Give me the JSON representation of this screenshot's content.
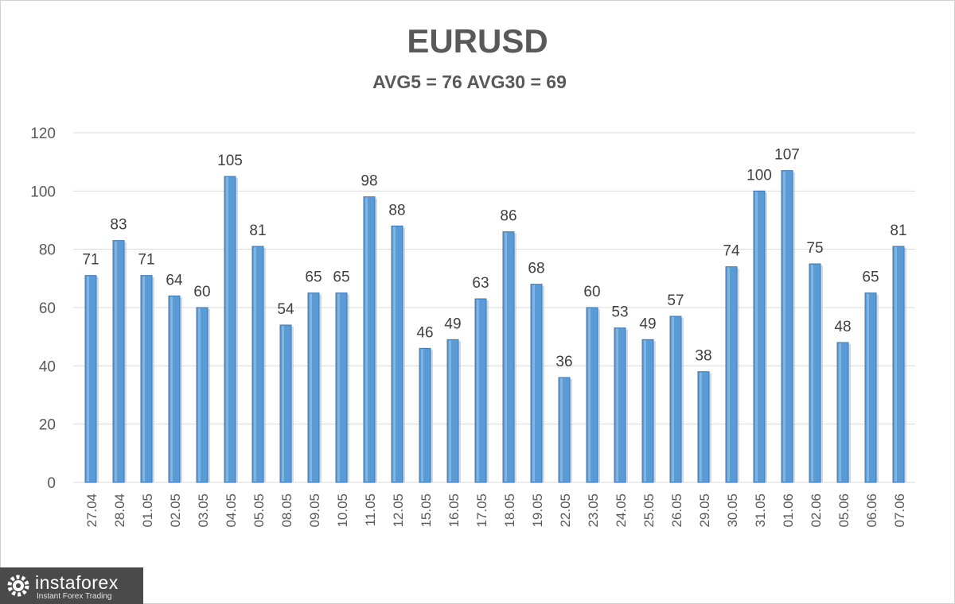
{
  "chart_data": {
    "type": "bar",
    "title": "EURUSD",
    "subtitle": "AVG5 = 76 AVG30 = 69",
    "xlabel": "",
    "ylabel": "",
    "ylim": [
      0,
      120
    ],
    "yticks": [
      0,
      20,
      40,
      60,
      80,
      100,
      120
    ],
    "grid": true,
    "legend": "none",
    "bar_color": "#5b9bd5",
    "categories": [
      "27.04",
      "28.04",
      "01.05",
      "02.05",
      "03.05",
      "04.05",
      "05.05",
      "08.05",
      "09.05",
      "10.05",
      "11.05",
      "12.05",
      "15.05",
      "16.05",
      "17.05",
      "18.05",
      "19.05",
      "22.05",
      "23.05",
      "24.05",
      "25.05",
      "26.05",
      "29.05",
      "30.05",
      "31.05",
      "01.06",
      "02.06",
      "05.06",
      "06.06",
      "07.06"
    ],
    "values": [
      71,
      83,
      71,
      64,
      60,
      105,
      81,
      54,
      65,
      65,
      98,
      88,
      46,
      49,
      63,
      86,
      68,
      36,
      60,
      53,
      49,
      57,
      38,
      74,
      100,
      107,
      75,
      48,
      65,
      81
    ]
  },
  "logo": {
    "name": "instaforex",
    "tagline": "Instant Forex Trading",
    "icon": "gear-icon"
  }
}
